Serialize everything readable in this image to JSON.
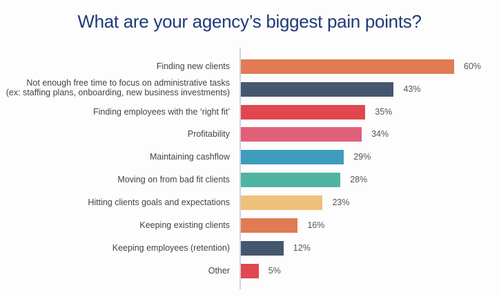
{
  "title": "What are your agency’s biggest pain points?",
  "chart_data": {
    "type": "bar",
    "orientation": "horizontal",
    "title": "What are your agency’s biggest pain points?",
    "xlabel": "",
    "ylabel": "",
    "grid": false,
    "legend": null,
    "categories": [
      "Finding new clients",
      "Not enough free time to focus on administrative tasks (ex: staffing plans, onboarding, new business investments)",
      "Finding employees with the ‘right fit’",
      "Profitability",
      "Maintaining cashflow",
      "Moving on from bad fit clients",
      "Hitting clients goals and expectations",
      "Keeping existing clients",
      "Keeping employees (retention)",
      "Other"
    ],
    "values": [
      60,
      43,
      35,
      34,
      29,
      28,
      23,
      16,
      12,
      5
    ],
    "value_labels": [
      "60%",
      "43%",
      "35%",
      "34%",
      "29%",
      "28%",
      "23%",
      "16%",
      "12%",
      "5%"
    ],
    "colors": [
      "#e07b53",
      "#45566f",
      "#e0474f",
      "#e0607a",
      "#3f9cbd",
      "#4fb5a0",
      "#efc07a",
      "#e07b53",
      "#45566f",
      "#e0474f"
    ],
    "xlim": [
      0,
      60
    ]
  },
  "rows": [
    {
      "line1": "Finding new clients",
      "line2": "",
      "value": "60%"
    },
    {
      "line1": "Not enough free time to focus on administrative tasks",
      "line2": "(ex: staffing plans, onboarding, new business investments)",
      "value": "43%"
    },
    {
      "line1": "Finding employees with the ‘right fit’",
      "line2": "",
      "value": "35%"
    },
    {
      "line1": "Profitability",
      "line2": "",
      "value": "34%"
    },
    {
      "line1": "Maintaining cashflow",
      "line2": "",
      "value": "29%"
    },
    {
      "line1": "Moving on from bad fit clients",
      "line2": "",
      "value": "28%"
    },
    {
      "line1": "Hitting clients goals and expectations",
      "line2": "",
      "value": "23%"
    },
    {
      "line1": "Keeping existing clients",
      "line2": "",
      "value": "16%"
    },
    {
      "line1": "Keeping employees (retention)",
      "line2": "",
      "value": "12%"
    },
    {
      "line1": "Other",
      "line2": "",
      "value": "5%"
    }
  ]
}
